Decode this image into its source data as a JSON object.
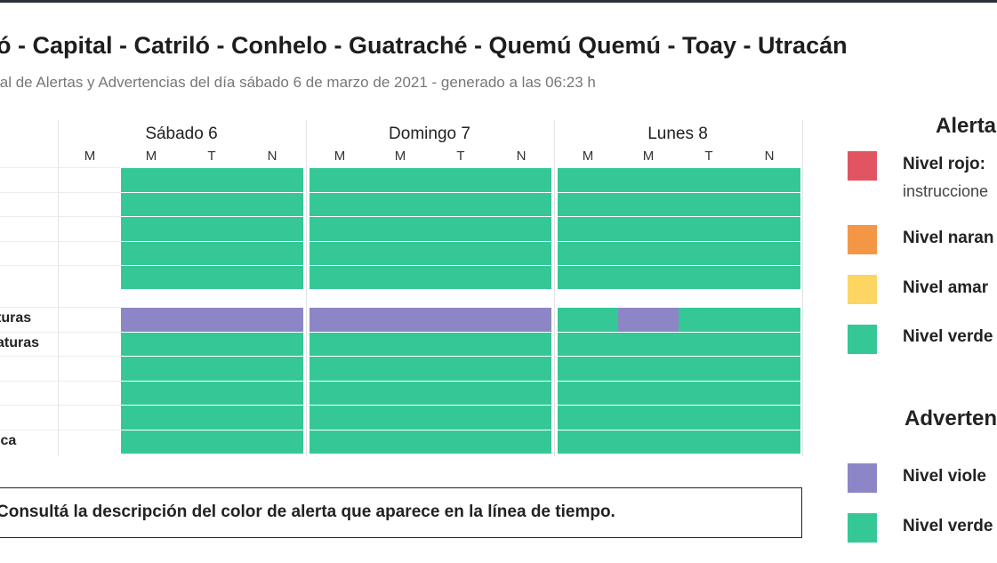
{
  "header": {
    "title": "ó - Capital - Catriló - Conhelo - Guatraché - Quemú Quemú - Toay - Utracán",
    "subtitle": "ial de Alertas y Advertencias del día sábado 6 de marzo de 2021 - generado a las 06:23 h"
  },
  "timeline": {
    "days": [
      {
        "label": "Sábado 6",
        "periods": [
          "M",
          "M",
          "T",
          "N"
        ]
      },
      {
        "label": "Domingo 7",
        "periods": [
          "M",
          "M",
          "T",
          "N"
        ]
      },
      {
        "label": "Lunes 8",
        "periods": [
          "M",
          "M",
          "T",
          "N"
        ]
      }
    ],
    "rows": [
      {
        "label": "",
        "levels": [
          "-",
          "verde",
          "verde",
          "verde",
          "verde",
          "verde",
          "verde",
          "verde",
          "verde",
          "verde",
          "verde",
          "verde"
        ]
      },
      {
        "label": "",
        "levels": [
          "-",
          "verde",
          "verde",
          "verde",
          "verde",
          "verde",
          "verde",
          "verde",
          "verde",
          "verde",
          "verde",
          "verde"
        ]
      },
      {
        "label": "",
        "levels": [
          "-",
          "verde",
          "verde",
          "verde",
          "verde",
          "verde",
          "verde",
          "verde",
          "verde",
          "verde",
          "verde",
          "verde"
        ]
      },
      {
        "label": "",
        "levels": [
          "-",
          "verde",
          "verde",
          "verde",
          "verde",
          "verde",
          "verde",
          "verde",
          "verde",
          "verde",
          "verde",
          "verde"
        ]
      },
      {
        "label": "",
        "levels": [
          "-",
          "verde",
          "verde",
          "verde",
          "verde",
          "verde",
          "verde",
          "verde",
          "verde",
          "verde",
          "verde",
          "verde"
        ]
      },
      {
        "label": "turas",
        "levels": [
          "-",
          "violeta",
          "violeta",
          "violeta",
          "violeta",
          "violeta",
          "violeta",
          "violeta",
          "verde",
          "violeta",
          "verde",
          "verde"
        ]
      },
      {
        "label": "aturas",
        "levels": [
          "-",
          "verde",
          "verde",
          "verde",
          "verde",
          "verde",
          "verde",
          "verde",
          "verde",
          "verde",
          "verde",
          "verde"
        ]
      },
      {
        "label": "",
        "levels": [
          "-",
          "verde",
          "verde",
          "verde",
          "verde",
          "verde",
          "verde",
          "verde",
          "verde",
          "verde",
          "verde",
          "verde"
        ]
      },
      {
        "label": "",
        "levels": [
          "-",
          "verde",
          "verde",
          "verde",
          "verde",
          "verde",
          "verde",
          "verde",
          "verde",
          "verde",
          "verde",
          "verde"
        ]
      },
      {
        "label": "",
        "levels": [
          "-",
          "verde",
          "verde",
          "verde",
          "verde",
          "verde",
          "verde",
          "verde",
          "verde",
          "verde",
          "verde",
          "verde"
        ]
      },
      {
        "label": "ica",
        "levels": [
          "-",
          "verde",
          "verde",
          "verde",
          "verde",
          "verde",
          "verde",
          "verde",
          "verde",
          "verde",
          "verde",
          "verde"
        ]
      }
    ]
  },
  "message": "Consultá la descripción del color de alerta que aparece en la línea de tiempo.",
  "legend": {
    "alertas_title": "Alerta",
    "alertas": [
      {
        "label": "Nivel rojo:",
        "sub": "instruccione",
        "color": "#e05561"
      },
      {
        "label": "Nivel naran",
        "sub": "",
        "color": "#f39646"
      },
      {
        "label": "Nivel amar",
        "sub": "",
        "color": "#fdd562"
      },
      {
        "label": "Nivel verde",
        "sub": "",
        "color": "#35c896"
      }
    ],
    "advertencias_title": "Adverten",
    "advertencias": [
      {
        "label": "Nivel viole",
        "color": "#8d86c6"
      },
      {
        "label": "Nivel verde",
        "color": "#35c896"
      }
    ]
  },
  "colors": {
    "verde": "#35c896",
    "violeta": "#8d86c6",
    "rojo": "#e05561",
    "naranja": "#f39646",
    "amarillo": "#fdd562"
  }
}
